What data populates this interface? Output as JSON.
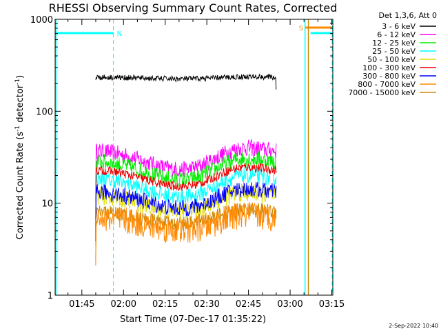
{
  "chart_data": {
    "type": "line",
    "title": "RHESSI Observing Summary Count Rates, Corrected",
    "xlabel": "Start Time (07-Dec-17 01:35:22)",
    "ylabel_main": "Corrected Count Rate (s",
    "ylabel_sup1": "-1",
    "ylabel_mid": " detector",
    "ylabel_sup2": "-1",
    "ylabel_end": ")",
    "y_scale": "log",
    "ylim": [
      1,
      1000
    ],
    "xlim_minutes": [
      0.0,
      100.0
    ],
    "x_ticks": [
      {
        "label": "01:45",
        "t": 9.63
      },
      {
        "label": "02:00",
        "t": 24.63
      },
      {
        "label": "02:15",
        "t": 39.63
      },
      {
        "label": "02:30",
        "t": 54.63
      },
      {
        "label": "02:45",
        "t": 69.63
      },
      {
        "label": "03:00",
        "t": 84.63
      },
      {
        "label": "03:15",
        "t": 99.63
      }
    ],
    "y_ticks": [
      {
        "label": "1",
        "v": 1
      },
      {
        "label": "10",
        "v": 10
      },
      {
        "label": "100",
        "v": 100
      },
      {
        "label": "1000",
        "v": 1000
      }
    ],
    "legend_header": "Det 1,3,6, Att 0",
    "legend_placement": "top-right",
    "data_time_range": [
      14.6,
      79.6
    ],
    "series": [
      {
        "name": "3 - 6 keV",
        "color": "#000000",
        "base": 230,
        "amp": 0.04,
        "noise": 0.03
      },
      {
        "name": "6 - 12 keV",
        "color": "#ff00ff",
        "base": 30,
        "amp": 0.45,
        "noise": 0.09
      },
      {
        "name": "12 - 25 keV",
        "color": "#00ee00",
        "base": 23,
        "amp": 0.45,
        "noise": 0.09
      },
      {
        "name": "25 - 50 keV",
        "color": "#00ffff",
        "base": 15,
        "amp": 0.45,
        "noise": 0.09
      },
      {
        "name": "50 - 100 keV",
        "color": "#dddd00",
        "base": 10,
        "amp": 0.4,
        "noise": 0.1
      },
      {
        "name": "100 - 300 keV",
        "color": "#ee0000",
        "base": 19,
        "amp": 0.4,
        "noise": 0.05
      },
      {
        "name": "300 - 800 keV",
        "color": "#0000ff",
        "base": 11,
        "amp": 0.4,
        "noise": 0.09
      },
      {
        "name": "800 - 7000 keV",
        "color": "#ff8800",
        "base": 6,
        "amp": 0.3,
        "noise": 0.15
      },
      {
        "name": "7000 - 15000 keV",
        "color": "#cc8800",
        "base": 7,
        "amp": 0.3,
        "noise": 0.08
      }
    ],
    "annotations": [
      {
        "label": "N",
        "color": "#00ffff",
        "bar_start": 0.0,
        "bar_end": 21.0,
        "dashed_at": 21.0
      },
      {
        "label": "S",
        "color": "#ff8800",
        "bar_start": 90.0,
        "bar_end": 104.5,
        "dashed_at": 111.5
      },
      {
        "label": "",
        "color": "#00ffff",
        "bar_start": 92.0,
        "bar_end": 114.5,
        "dashed_at": 114.5
      }
    ],
    "solid_markers": [
      {
        "t": 90.0,
        "color": "#00ffff"
      },
      {
        "t": 91.2,
        "color": "#cc8800"
      }
    ]
  },
  "footer": {
    "date": "2-Sep-2022 10:40"
  }
}
